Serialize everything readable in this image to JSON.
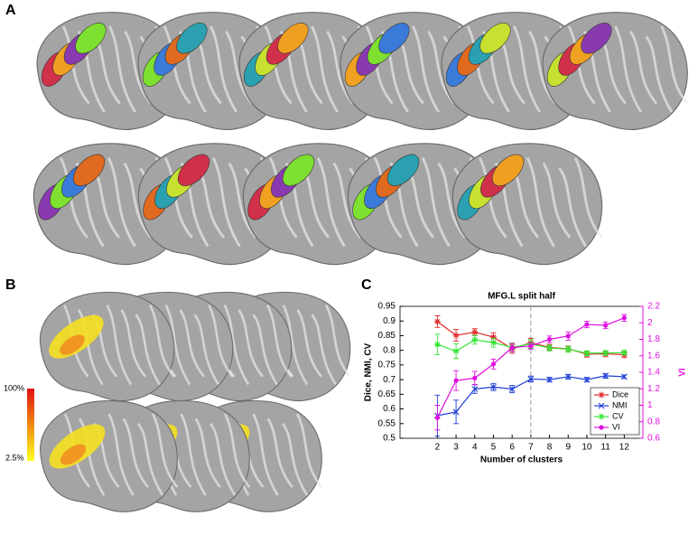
{
  "panels": {
    "a": "A",
    "b": "B",
    "c": "C"
  },
  "colorbar": {
    "max_label": "100%",
    "min_label": "2.5%"
  },
  "chart_data": {
    "type": "line",
    "title": "MFG.L split half",
    "x_label": "Number of clusters",
    "y_label": "Dice, NMI, CV",
    "y2_label": "VI",
    "x": [
      2,
      3,
      4,
      5,
      6,
      7,
      8,
      9,
      10,
      11,
      12
    ],
    "xlim": [
      0,
      13
    ],
    "xticks": [
      2,
      3,
      4,
      5,
      6,
      7,
      8,
      9,
      10,
      11,
      12
    ],
    "ylim": [
      0.5,
      0.95
    ],
    "yticks": [
      0.5,
      0.55,
      0.6,
      0.65,
      0.7,
      0.75,
      0.8,
      0.85,
      0.9,
      0.95
    ],
    "y2lim": [
      0.6,
      2.2
    ],
    "y2ticks": [
      0.6,
      0.8,
      1,
      1.2,
      1.4,
      1.6,
      1.8,
      2,
      2.2
    ],
    "y2color": "#e010e0",
    "vline": 7,
    "legend": "lower right",
    "series": [
      {
        "name": "Dice",
        "color": "#e0262a",
        "marker": "star",
        "values": [
          0.898,
          0.851,
          0.862,
          0.845,
          0.805,
          0.826,
          0.81,
          0.805,
          0.787,
          0.788,
          0.785
        ],
        "errors": [
          0.02,
          0.02,
          0.012,
          0.015,
          0.015,
          0.015,
          0.01,
          0.01,
          0.01,
          0.01,
          0.01
        ]
      },
      {
        "name": "NMI",
        "color": "#1f3fd6",
        "marker": "x",
        "values": [
          0.577,
          0.59,
          0.668,
          0.675,
          0.668,
          0.702,
          0.7,
          0.71,
          0.7,
          0.713,
          0.71
        ],
        "errors": [
          0.07,
          0.04,
          0.015,
          0.012,
          0.012,
          0.01,
          0.008,
          0.008,
          0.008,
          0.008,
          0.006
        ]
      },
      {
        "name": "CV",
        "color": "#33e633",
        "marker": "star",
        "values": [
          0.82,
          0.797,
          0.836,
          0.826,
          0.81,
          0.822,
          0.808,
          0.804,
          0.79,
          0.791,
          0.792
        ],
        "errors": [
          0.035,
          0.025,
          0.015,
          0.015,
          0.015,
          0.015,
          0.01,
          0.01,
          0.008,
          0.008,
          0.008
        ]
      },
      {
        "name": "VI",
        "color": "#e010e0",
        "marker": "dot",
        "axis": "y2",
        "values": [
          0.85,
          1.3,
          1.33,
          1.5,
          1.7,
          1.72,
          1.8,
          1.84,
          1.98,
          1.97,
          2.06
        ],
        "errors": [
          0.15,
          0.12,
          0.08,
          0.06,
          0.05,
          0.04,
          0.04,
          0.05,
          0.04,
          0.04,
          0.04
        ]
      }
    ]
  }
}
